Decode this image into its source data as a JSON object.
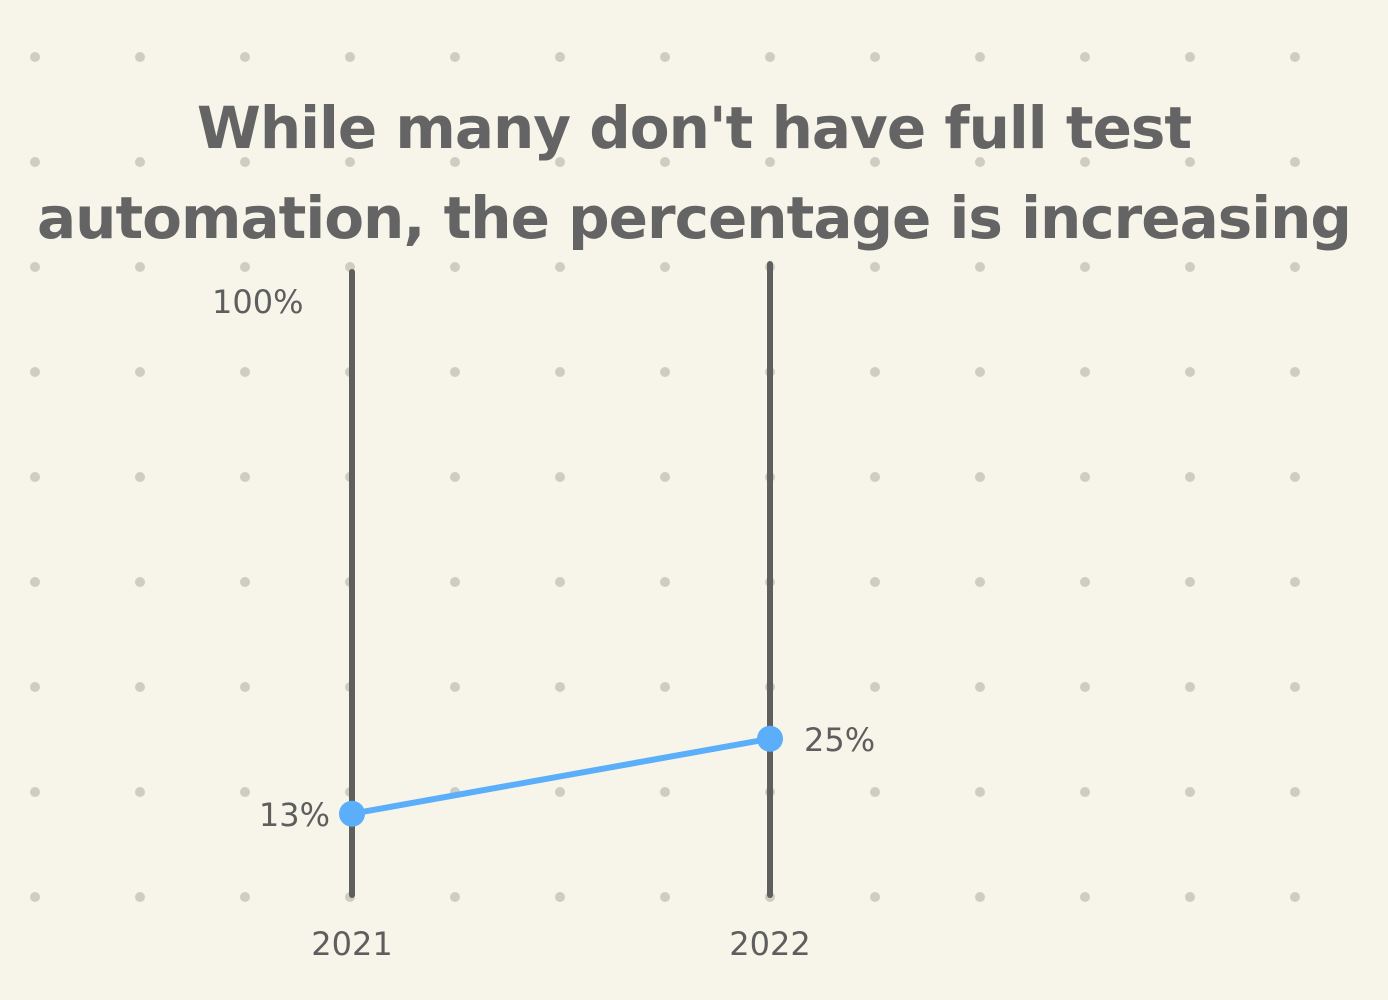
{
  "title_lines": [
    "While many don't have full test",
    "automation, the percentage is increasing"
  ],
  "chart_data": {
    "type": "line",
    "subtype": "slope",
    "title": "While many don't have full test automation, the percentage is increasing",
    "x": [
      "2021",
      "2022"
    ],
    "x_tick_labels": [
      "2021",
      "2022"
    ],
    "series": [
      {
        "values": [
          13,
          25
        ],
        "value_labels": [
          "13%",
          "25%"
        ],
        "color": "#5aaefa"
      }
    ],
    "y_range": [
      0,
      100
    ],
    "y_axis_label": "100%",
    "axis_color": "#5f5f5f",
    "background": "#f7f5ea",
    "dot_grid": true,
    "dot_color": "#cfcdc2"
  }
}
